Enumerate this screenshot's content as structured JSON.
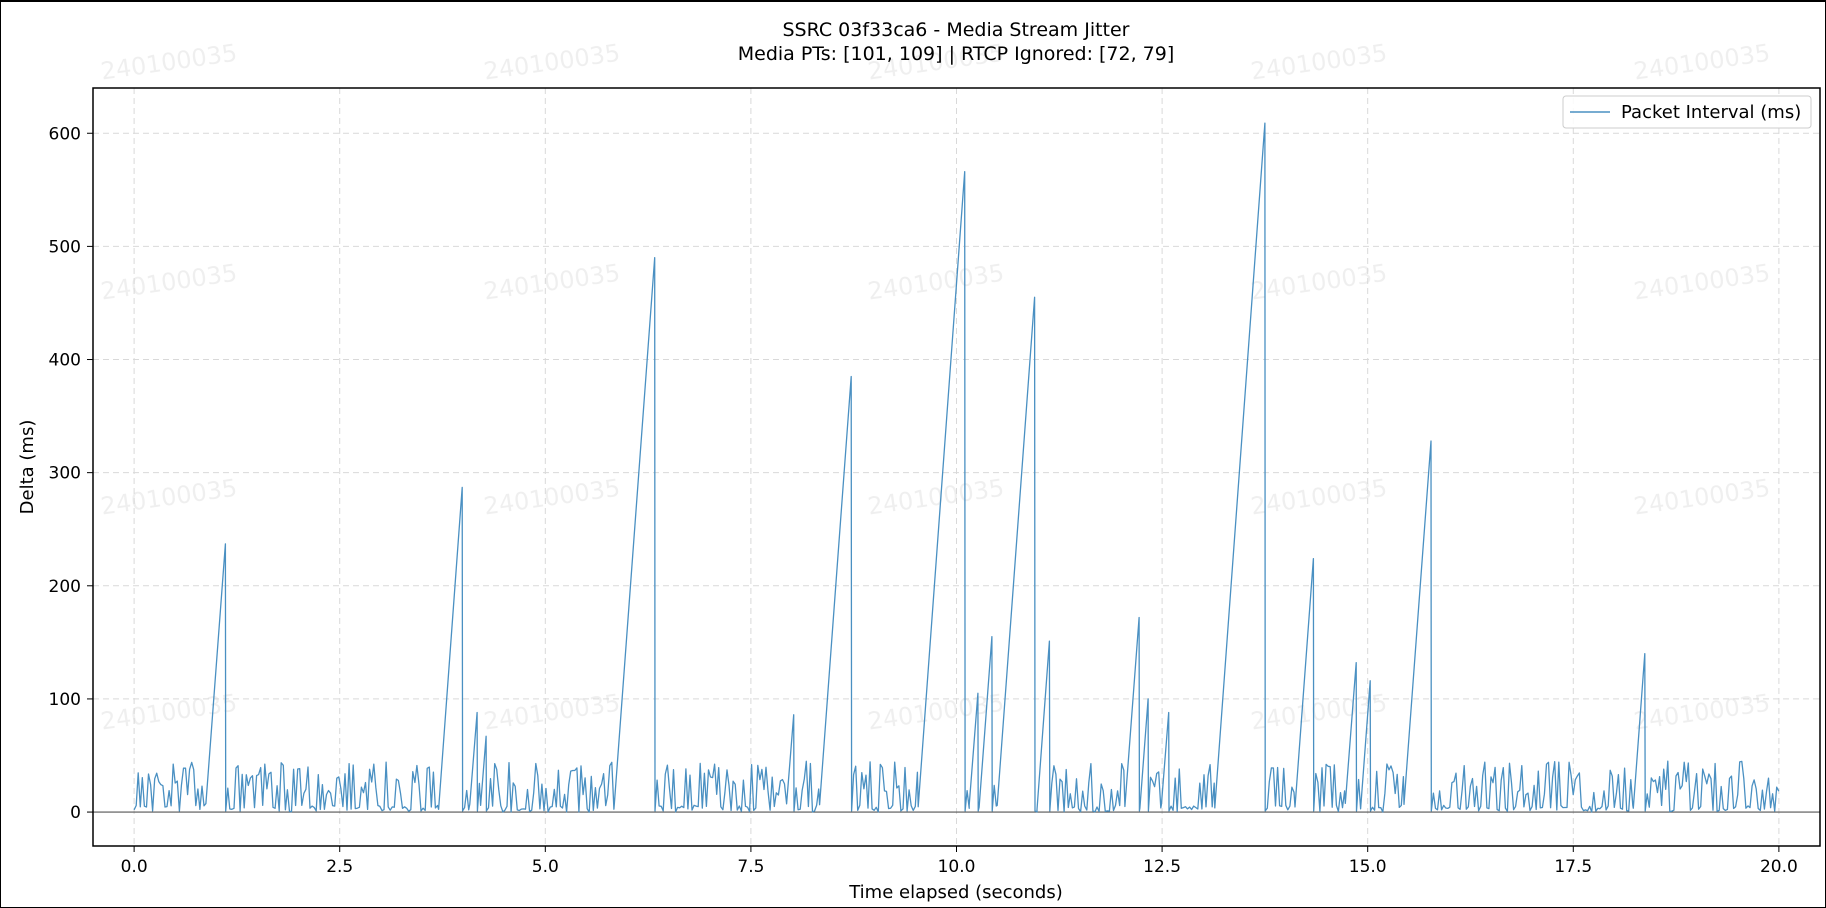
{
  "chart_data": {
    "type": "line",
    "title": "SSRC 03f33ca6 - Media Stream Jitter",
    "subtitle": "Media PTs: [101, 109] | RTCP Ignored: [72, 79]",
    "xlabel": "Time elapsed (seconds)",
    "ylabel": "Delta (ms)",
    "xlim": [
      -0.5,
      20.5
    ],
    "ylim": [
      -30,
      640
    ],
    "xticks": [
      0.0,
      2.5,
      5.0,
      7.5,
      10.0,
      12.5,
      15.0,
      17.5,
      20.0
    ],
    "xtick_labels": [
      "0.0",
      "2.5",
      "5.0",
      "7.5",
      "10.0",
      "12.5",
      "15.0",
      "17.5",
      "20.0"
    ],
    "yticks": [
      0,
      100,
      200,
      300,
      400,
      500,
      600
    ],
    "ytick_labels": [
      "0",
      "100",
      "200",
      "300",
      "400",
      "500",
      "600"
    ],
    "grid": true,
    "legend_position": "upper-right",
    "watermark": "240100035",
    "line_color": "#4a90c2",
    "series": [
      {
        "name": "Packet Interval (ms)",
        "spikes": [
          {
            "x": 1.11,
            "y": 237
          },
          {
            "x": 3.99,
            "y": 287
          },
          {
            "x": 4.17,
            "y": 88
          },
          {
            "x": 4.28,
            "y": 67
          },
          {
            "x": 6.33,
            "y": 490
          },
          {
            "x": 8.02,
            "y": 86
          },
          {
            "x": 8.72,
            "y": 385
          },
          {
            "x": 10.1,
            "y": 566
          },
          {
            "x": 10.26,
            "y": 105
          },
          {
            "x": 10.43,
            "y": 155
          },
          {
            "x": 10.95,
            "y": 455
          },
          {
            "x": 11.13,
            "y": 151
          },
          {
            "x": 12.22,
            "y": 172
          },
          {
            "x": 12.33,
            "y": 100
          },
          {
            "x": 12.58,
            "y": 88
          },
          {
            "x": 13.75,
            "y": 609
          },
          {
            "x": 14.34,
            "y": 224
          },
          {
            "x": 14.86,
            "y": 132
          },
          {
            "x": 15.03,
            "y": 116
          },
          {
            "x": 15.77,
            "y": 328
          },
          {
            "x": 18.37,
            "y": 140
          }
        ],
        "noise_max": 45,
        "x_range": [
          0.0,
          20.0
        ]
      }
    ]
  }
}
